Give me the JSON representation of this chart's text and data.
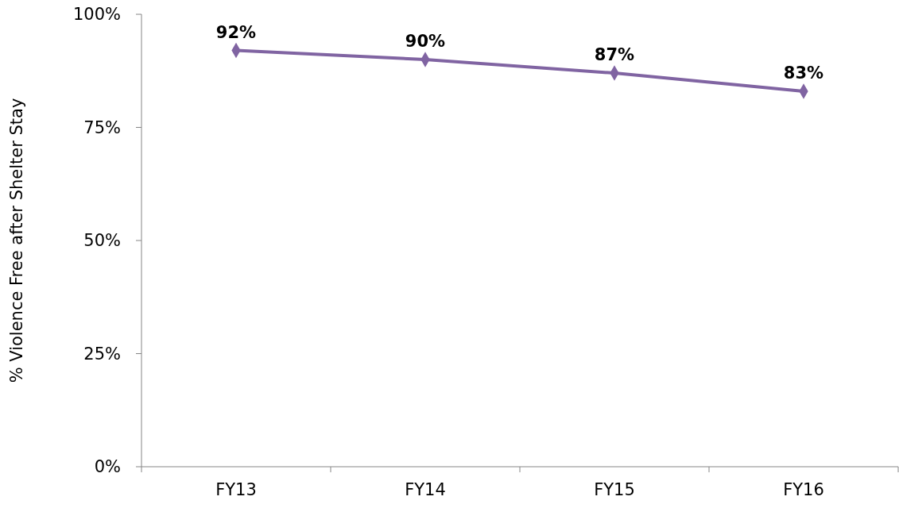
{
  "chart_data": {
    "type": "line",
    "ylabel": "% Violence Free after Shelter Stay",
    "categories": [
      "FY13",
      "FY14",
      "FY15",
      "FY16"
    ],
    "series": [
      {
        "color": "#8064a2",
        "values": [
          92,
          90,
          87,
          83
        ],
        "value_labels": [
          "92%",
          "90%",
          "87%",
          "83%"
        ]
      }
    ],
    "ylim": [
      0,
      100
    ],
    "yticks": [
      {
        "value": 0,
        "label": "0%"
      },
      {
        "value": 25,
        "label": "25%"
      },
      {
        "value": 50,
        "label": "50%"
      },
      {
        "value": 75,
        "label": "75%"
      },
      {
        "value": 100,
        "label": "100%"
      }
    ],
    "marker": "diamond",
    "line_style": "solid"
  }
}
